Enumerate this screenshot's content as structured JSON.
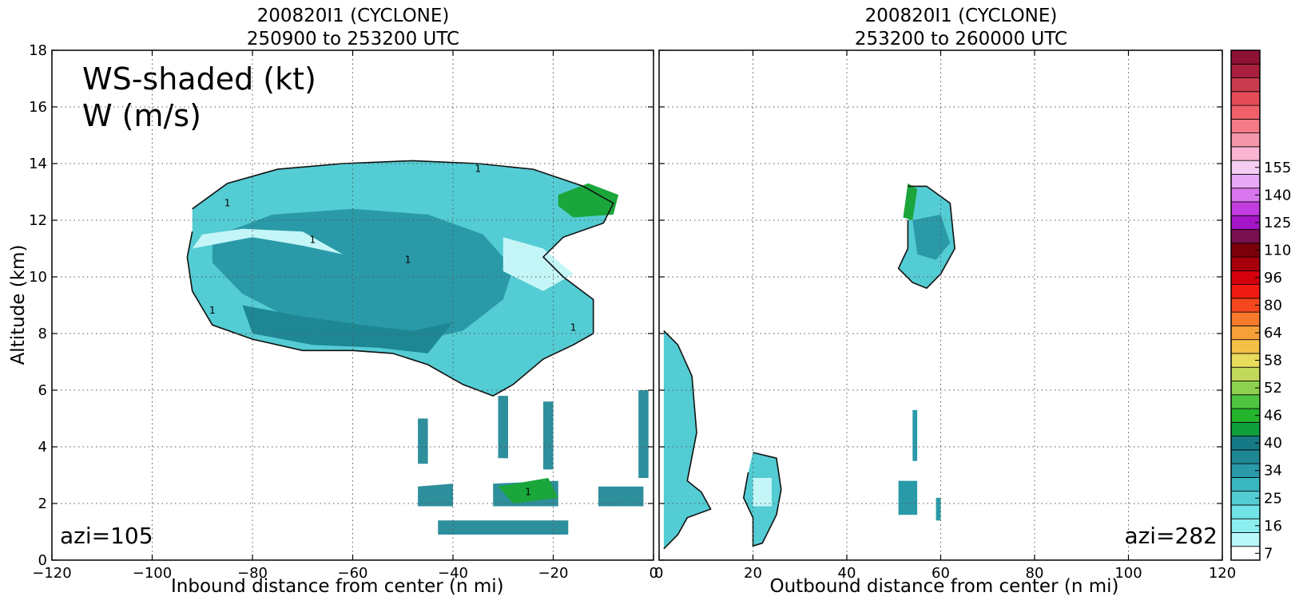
{
  "chart_data": [
    {
      "type": "heatmap",
      "title": "200820I1 (CYCLONE)",
      "subtitle": "250900 to 253200 UTC",
      "xlabel": "Inbound distance from center (n mi)",
      "ylabel": "Altitude (km)",
      "xlim": [
        -120,
        0
      ],
      "ylim": [
        0,
        18
      ],
      "x_ticks": [
        "−120",
        "−100",
        "−80",
        "−60",
        "−40",
        "−20",
        "0"
      ],
      "y_ticks": [
        "0",
        "2",
        "4",
        "6",
        "8",
        "10",
        "12",
        "14",
        "16",
        "18"
      ],
      "grid": true,
      "annotations": [
        "WS-shaded (kt)",
        "W (m/s)",
        "azi=105"
      ],
      "contour_label": "1",
      "regions": [
        {
          "kind": "anvil",
          "points": [
            [
              -92,
              12.4
            ],
            [
              -85,
              13.3
            ],
            [
              -75,
              13.8
            ],
            [
              -62,
              14.0
            ],
            [
              -48,
              14.1
            ],
            [
              -35,
              14.0
            ],
            [
              -24,
              13.8
            ],
            [
              -14,
              13.2
            ],
            [
              -8,
              12.6
            ],
            [
              -10,
              11.9
            ],
            [
              -18,
              11.4
            ],
            [
              -22,
              10.7
            ],
            [
              -18,
              10.0
            ],
            [
              -12,
              9.2
            ],
            [
              -12,
              8.0
            ],
            [
              -16,
              7.6
            ],
            [
              -22,
              7.1
            ],
            [
              -28,
              6.2
            ],
            [
              -32,
              5.8
            ],
            [
              -38,
              6.2
            ],
            [
              -45,
              6.9
            ],
            [
              -52,
              7.3
            ],
            [
              -60,
              7.4
            ],
            [
              -70,
              7.4
            ],
            [
              -80,
              7.8
            ],
            [
              -88,
              8.3
            ],
            [
              -92,
              9.5
            ],
            [
              -93,
              10.7
            ],
            [
              -92,
              11.6
            ]
          ]
        },
        {
          "kind": "inner",
          "points": [
            [
              -88,
              11.4
            ],
            [
              -76,
              12.2
            ],
            [
              -60,
              12.4
            ],
            [
              -45,
              12.2
            ],
            [
              -34,
              11.5
            ],
            [
              -28,
              10.3
            ],
            [
              -30,
              9.2
            ],
            [
              -38,
              8.1
            ],
            [
              -48,
              7.7
            ],
            [
              -60,
              7.9
            ],
            [
              -72,
              8.5
            ],
            [
              -82,
              9.4
            ],
            [
              -88,
              10.5
            ]
          ]
        },
        {
          "kind": "core",
          "points": [
            [
              -82,
              9.0
            ],
            [
              -70,
              8.6
            ],
            [
              -58,
              8.3
            ],
            [
              -48,
              8.1
            ],
            [
              -40,
              8.4
            ],
            [
              -45,
              7.3
            ],
            [
              -55,
              7.5
            ],
            [
              -68,
              7.6
            ],
            [
              -80,
              8.0
            ]
          ]
        },
        {
          "kind": "bright",
          "points": [
            [
              -92,
              11.0
            ],
            [
              -80,
              11.4
            ],
            [
              -70,
              11.1
            ],
            [
              -62,
              10.8
            ],
            [
              -70,
              11.6
            ],
            [
              -82,
              11.7
            ],
            [
              -90,
              11.5
            ]
          ]
        },
        {
          "kind": "bright",
          "points": [
            [
              -30,
              11.4
            ],
            [
              -22,
              11.0
            ],
            [
              -16,
              10.1
            ],
            [
              -22,
              9.5
            ],
            [
              -30,
              10.2
            ]
          ]
        },
        {
          "kind": "wind34",
          "points": [
            [
              -19,
              12.9
            ],
            [
              -13,
              13.3
            ],
            [
              -7,
              12.9
            ],
            [
              -8,
              12.2
            ],
            [
              -16,
              12.1
            ],
            [
              -19,
              12.5
            ]
          ]
        },
        {
          "kind": "low",
          "points": [
            [
              -47,
              2.6
            ],
            [
              -40,
              2.7
            ],
            [
              -40,
              1.9
            ],
            [
              -47,
              1.9
            ]
          ]
        },
        {
          "kind": "low",
          "points": [
            [
              -32,
              2.7
            ],
            [
              -19,
              2.8
            ],
            [
              -19,
              1.9
            ],
            [
              -32,
              1.9
            ]
          ]
        },
        {
          "kind": "low",
          "points": [
            [
              -11,
              2.6
            ],
            [
              -2,
              2.6
            ],
            [
              -2,
              1.9
            ],
            [
              -11,
              1.9
            ]
          ]
        },
        {
          "kind": "low",
          "points": [
            [
              -43,
              1.4
            ],
            [
              -17,
              1.4
            ],
            [
              -17,
              0.9
            ],
            [
              -43,
              0.9
            ]
          ]
        },
        {
          "kind": "wind34",
          "points": [
            [
              -31,
              2.6
            ],
            [
              -21,
              2.9
            ],
            [
              -19,
              2.2
            ],
            [
              -28,
              2.0
            ]
          ]
        },
        {
          "kind": "low",
          "points": [
            [
              -47,
              5.0
            ],
            [
              -45,
              5.0
            ],
            [
              -45,
              3.4
            ],
            [
              -47,
              3.4
            ]
          ]
        },
        {
          "kind": "low",
          "points": [
            [
              -31,
              5.8
            ],
            [
              -29,
              5.8
            ],
            [
              -29,
              3.6
            ],
            [
              -31,
              3.6
            ]
          ]
        },
        {
          "kind": "low",
          "points": [
            [
              -22,
              5.6
            ],
            [
              -20,
              5.6
            ],
            [
              -20,
              3.2
            ],
            [
              -22,
              3.2
            ]
          ]
        },
        {
          "kind": "low",
          "points": [
            [
              -3,
              6.0
            ],
            [
              -1,
              6.0
            ],
            [
              -1,
              2.9
            ],
            [
              -3,
              2.9
            ]
          ]
        }
      ]
    },
    {
      "type": "heatmap",
      "title": "200820I1 (CYCLONE)",
      "subtitle": "253200 to 260000 UTC",
      "xlabel": "Outbound distance from center (n mi)",
      "xlim": [
        0,
        120
      ],
      "ylim": [
        0,
        18
      ],
      "x_ticks": [
        "0",
        "20",
        "40",
        "60",
        "80",
        "100",
        "120"
      ],
      "grid": true,
      "annotations": [
        "azi=282"
      ],
      "regions": [
        {
          "kind": "anvil",
          "points": [
            [
              53,
              13.2
            ],
            [
              57,
              13.2
            ],
            [
              62,
              12.6
            ],
            [
              63,
              11.0
            ],
            [
              60,
              10.1
            ],
            [
              57,
              9.6
            ],
            [
              54,
              9.8
            ],
            [
              51,
              10.3
            ],
            [
              53,
              11.0
            ],
            [
              53,
              12.0
            ]
          ]
        },
        {
          "kind": "inner",
          "points": [
            [
              54,
              12.0
            ],
            [
              60,
              12.2
            ],
            [
              62,
              11.2
            ],
            [
              59,
              10.6
            ],
            [
              55,
              10.8
            ]
          ]
        },
        {
          "kind": "wind34",
          "points": [
            [
              53,
              13.3
            ],
            [
              55,
              13.1
            ],
            [
              54,
              12.0
            ],
            [
              52,
              12.1
            ]
          ]
        },
        {
          "kind": "anvil",
          "points": [
            [
              1,
              8.1
            ],
            [
              4,
              7.6
            ],
            [
              7,
              6.5
            ],
            [
              8,
              4.5
            ],
            [
              6,
              2.8
            ],
            [
              9,
              2.4
            ],
            [
              11,
              1.8
            ],
            [
              6,
              1.5
            ],
            [
              4,
              0.9
            ],
            [
              1,
              0.4
            ]
          ]
        },
        {
          "kind": "anvil",
          "points": [
            [
              20,
              3.8
            ],
            [
              25,
              3.6
            ],
            [
              26,
              2.5
            ],
            [
              25,
              1.6
            ],
            [
              22,
              0.6
            ],
            [
              20,
              0.5
            ],
            [
              20,
              1.5
            ],
            [
              18,
              2.2
            ],
            [
              19,
              3.1
            ]
          ]
        },
        {
          "kind": "bright",
          "points": [
            [
              20,
              2.9
            ],
            [
              24,
              2.9
            ],
            [
              24,
              1.9
            ],
            [
              20,
              1.9
            ]
          ]
        },
        {
          "kind": "inner",
          "points": [
            [
              54,
              5.3
            ],
            [
              55,
              5.3
            ],
            [
              55,
              3.5
            ],
            [
              54,
              3.5
            ]
          ]
        },
        {
          "kind": "inner",
          "points": [
            [
              51,
              2.8
            ],
            [
              55,
              2.8
            ],
            [
              55,
              1.6
            ],
            [
              51,
              1.6
            ]
          ]
        },
        {
          "kind": "inner",
          "points": [
            [
              59,
              2.2
            ],
            [
              60,
              2.2
            ],
            [
              60,
              1.4
            ],
            [
              59,
              1.4
            ]
          ]
        }
      ]
    }
  ],
  "colorbar": {
    "tick_labels": [
      "7",
      "16",
      "25",
      "34",
      "40",
      "46",
      "52",
      "58",
      "64",
      "80",
      "96",
      "110",
      "125",
      "140",
      "155"
    ],
    "tick_levels": [
      0,
      2,
      4,
      6,
      8,
      10,
      12,
      14,
      16,
      18,
      20,
      22,
      24,
      26,
      28
    ],
    "colors": [
      "#ffffff",
      "#b9f7f8",
      "#8ceeee",
      "#6fe3e6",
      "#54ccd3",
      "#3ab6bf",
      "#2a9aa8",
      "#1e8794",
      "#167a86",
      "#0f9e3c",
      "#25b52d",
      "#4fc440",
      "#8ed04f",
      "#c2d85a",
      "#e8dc5c",
      "#f4c046",
      "#f6a03a",
      "#f77a2c",
      "#f5481e",
      "#f01a12",
      "#d4000c",
      "#a8000a",
      "#7c000a",
      "#7a0f4f",
      "#a416c7",
      "#c23ce0",
      "#d876ee",
      "#e9a8f5",
      "#f5cdf2",
      "#f9b5d2",
      "#f597ac",
      "#f57a88",
      "#f0606a",
      "#e44c57",
      "#c93a4e",
      "#a8203e",
      "#8e1235"
    ]
  }
}
